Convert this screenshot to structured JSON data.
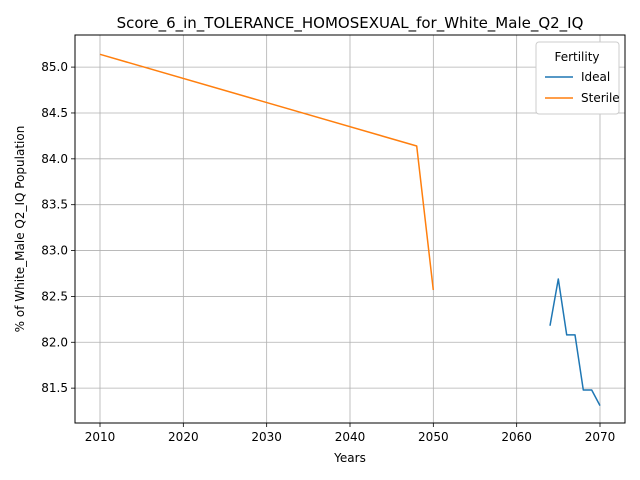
{
  "chart_data": {
    "type": "line",
    "title": "Score_6_in_TOLERANCE_HOMOSEXUAL_for_White_Male_Q2_IQ",
    "xlabel": "Years",
    "ylabel": "% of White_Male Q2_IQ Population",
    "xlim": [
      2007,
      2073
    ],
    "ylim": [
      81.12,
      85.35
    ],
    "xticks": [
      2010,
      2020,
      2030,
      2040,
      2050,
      2060,
      2070
    ],
    "yticks": [
      81.5,
      82.0,
      82.5,
      83.0,
      83.5,
      84.0,
      84.5,
      85.0
    ],
    "ytick_labels": [
      "81.5",
      "82.0",
      "82.5",
      "83.0",
      "83.5",
      "84.0",
      "84.5",
      "85.0"
    ],
    "grid": true,
    "legend": {
      "title": "Fertility",
      "position": "top-right"
    },
    "series": [
      {
        "name": "Ideal",
        "color": "#1f77b4",
        "x": [
          2064,
          2065,
          2066,
          2067,
          2068,
          2069,
          2070
        ],
        "y": [
          82.18,
          82.69,
          82.08,
          82.08,
          81.48,
          81.48,
          81.31
        ]
      },
      {
        "name": "Sterile",
        "color": "#ff7f0e",
        "x": [
          2010,
          2048,
          2050
        ],
        "y": [
          85.14,
          84.14,
          82.57
        ]
      }
    ]
  }
}
